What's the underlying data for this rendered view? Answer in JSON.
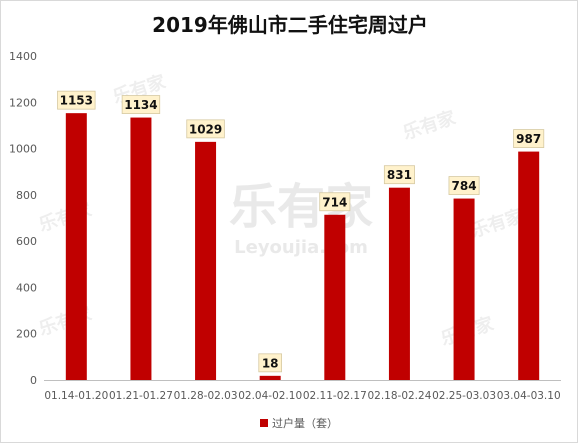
{
  "chart_data": {
    "type": "bar",
    "title": "2019年佛山市二手住宅周过户",
    "categories": [
      "01.14-01.20",
      "01.21-01.27",
      "01.28-02.03",
      "02.04-02.10",
      "02.11-02.17",
      "02.18-02.24",
      "02.25-03.03",
      "03.04-03.10"
    ],
    "series": [
      {
        "name": "过户量（套）",
        "values": [
          1153,
          1134,
          1029,
          18,
          714,
          831,
          784,
          987
        ]
      }
    ],
    "ylim": [
      0,
      1400
    ],
    "yticks": [
      0,
      200,
      400,
      600,
      800,
      1000,
      1200,
      1400
    ],
    "grid": false,
    "legend": "bottom-center",
    "colors": {
      "bar": "#c00000",
      "label_bg": "#fff2cc",
      "label_border": "#d6c9a1"
    }
  },
  "watermark": {
    "logo": "乐有家",
    "site": "Leyoujia.com"
  }
}
